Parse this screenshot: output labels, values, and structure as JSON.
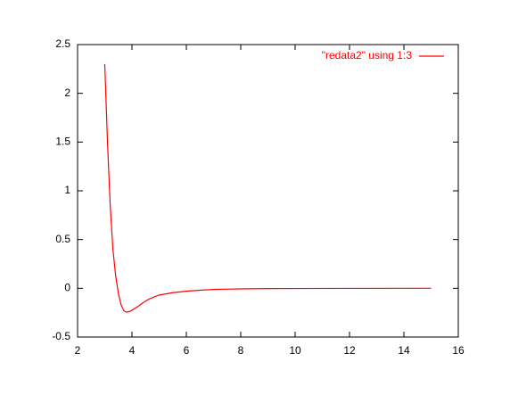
{
  "chart_data": {
    "type": "line",
    "x": [
      3,
      3.1,
      3.2,
      3.3,
      3.4,
      3.5,
      3.6,
      3.7,
      3.8,
      3.9,
      4.0,
      4.2,
      4.4,
      4.6,
      4.8,
      5.0,
      5.5,
      6.0,
      6.5,
      7.0,
      8.0,
      9.0,
      10.0,
      12.0,
      15.0
    ],
    "series": [
      {
        "name": "\"redata2\" using 1:3",
        "color": "#ff0000",
        "values": [
          2.3,
          1.5,
          0.85,
          0.4,
          0.13,
          -0.05,
          -0.17,
          -0.23,
          -0.245,
          -0.24,
          -0.225,
          -0.19,
          -0.15,
          -0.115,
          -0.09,
          -0.07,
          -0.045,
          -0.03,
          -0.02,
          -0.012,
          -0.006,
          -0.003,
          -0.002,
          -0.001,
          0
        ]
      }
    ],
    "xlim": [
      2,
      16
    ],
    "xticks": [
      2,
      4,
      6,
      8,
      10,
      12,
      14,
      16
    ],
    "ylim": [
      -0.5,
      2.5
    ],
    "yticks": [
      -0.5,
      0,
      0.5,
      1,
      1.5,
      2,
      2.5
    ],
    "legend": "top-right"
  }
}
